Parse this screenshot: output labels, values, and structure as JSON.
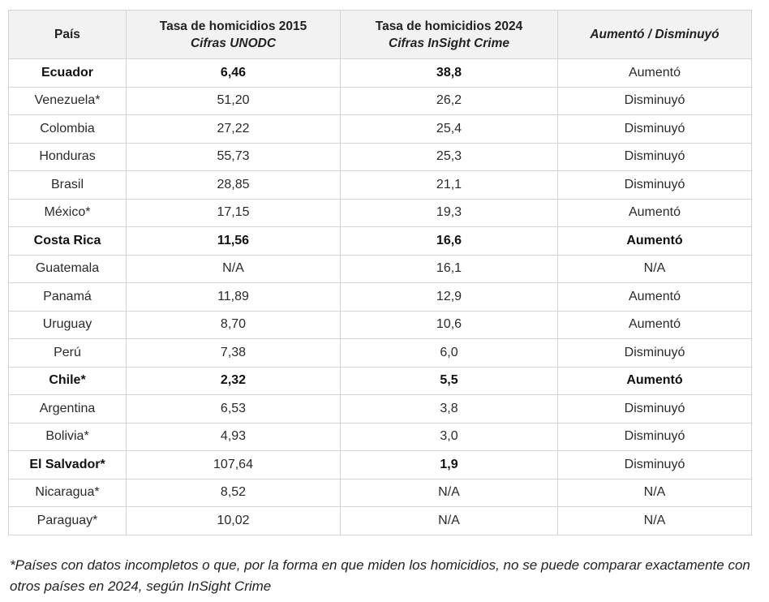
{
  "table": {
    "headers": [
      {
        "line1": "País",
        "line2": ""
      },
      {
        "line1": "Tasa de homicidios 2015",
        "line2": "Cifras UNODC"
      },
      {
        "line1": "Tasa de homicidios 2024",
        "line2": "Cifras InSight Crime"
      },
      {
        "line1": "Aumentó / Disminuyó",
        "line2": ""
      }
    ],
    "rows": [
      {
        "pais": "Ecuador",
        "t2015": "6,46",
        "t2024": "38,8",
        "cambio": "Aumentó",
        "bold": [
          true,
          true,
          true,
          false
        ]
      },
      {
        "pais": "Venezuela*",
        "t2015": "51,20",
        "t2024": "26,2",
        "cambio": "Disminuyó",
        "bold": [
          false,
          false,
          false,
          false
        ]
      },
      {
        "pais": "Colombia",
        "t2015": "27,22",
        "t2024": "25,4",
        "cambio": "Disminuyó",
        "bold": [
          false,
          false,
          false,
          false
        ]
      },
      {
        "pais": "Honduras",
        "t2015": "55,73",
        "t2024": "25,3",
        "cambio": "Disminuyó",
        "bold": [
          false,
          false,
          false,
          false
        ]
      },
      {
        "pais": "Brasil",
        "t2015": "28,85",
        "t2024": "21,1",
        "cambio": "Disminuyó",
        "bold": [
          false,
          false,
          false,
          false
        ]
      },
      {
        "pais": "México*",
        "t2015": "17,15",
        "t2024": "19,3",
        "cambio": "Aumentó",
        "bold": [
          false,
          false,
          false,
          false
        ]
      },
      {
        "pais": "Costa Rica",
        "t2015": "11,56",
        "t2024": "16,6",
        "cambio": "Aumentó",
        "bold": [
          true,
          true,
          true,
          true
        ]
      },
      {
        "pais": "Guatemala",
        "t2015": "N/A",
        "t2024": "16,1",
        "cambio": "N/A",
        "bold": [
          false,
          false,
          false,
          false
        ]
      },
      {
        "pais": "Panamá",
        "t2015": "11,89",
        "t2024": "12,9",
        "cambio": "Aumentó",
        "bold": [
          false,
          false,
          false,
          false
        ]
      },
      {
        "pais": "Uruguay",
        "t2015": "8,70",
        "t2024": "10,6",
        "cambio": "Aumentó",
        "bold": [
          false,
          false,
          false,
          false
        ]
      },
      {
        "pais": "Perú",
        "t2015": "7,38",
        "t2024": "6,0",
        "cambio": "Disminuyó",
        "bold": [
          false,
          false,
          false,
          false
        ]
      },
      {
        "pais": "Chile*",
        "t2015": "2,32",
        "t2024": "5,5",
        "cambio": "Aumentó",
        "bold": [
          true,
          true,
          true,
          true
        ]
      },
      {
        "pais": "Argentina",
        "t2015": "6,53",
        "t2024": "3,8",
        "cambio": "Disminuyó",
        "bold": [
          false,
          false,
          false,
          false
        ]
      },
      {
        "pais": "Bolivia*",
        "t2015": "4,93",
        "t2024": "3,0",
        "cambio": "Disminuyó",
        "bold": [
          false,
          false,
          false,
          false
        ]
      },
      {
        "pais": "El Salvador*",
        "t2015": "107,64",
        "t2024": "1,9",
        "cambio": "Disminuyó",
        "bold": [
          true,
          false,
          true,
          false
        ]
      },
      {
        "pais": "Nicaragua*",
        "t2015": "8,52",
        "t2024": "N/A",
        "cambio": "N/A",
        "bold": [
          false,
          false,
          false,
          false
        ]
      },
      {
        "pais": "Paraguay*",
        "t2015": "10,02",
        "t2024": "N/A",
        "cambio": "N/A",
        "bold": [
          false,
          false,
          false,
          false
        ]
      }
    ]
  },
  "footnote": "*Países con datos incompletos o que, por la forma en que miden los homicidios, no se puede comparar exactamente con otros países en 2024, según InSight Crime"
}
